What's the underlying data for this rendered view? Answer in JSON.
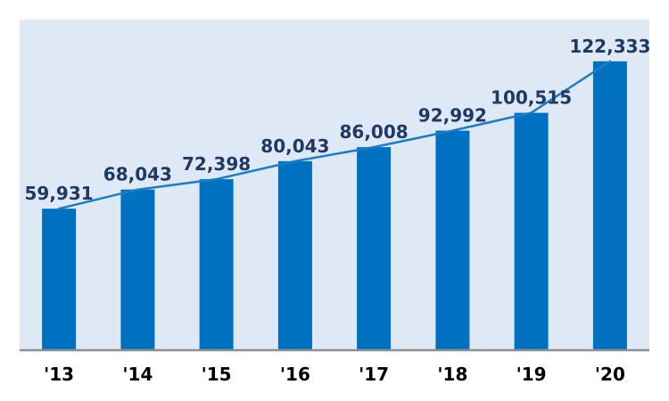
{
  "chart_data": {
    "type": "bar",
    "subtype": "bar-with-line-overlay",
    "title": "",
    "xlabel": "",
    "ylabel": "",
    "categories": [
      "'13",
      "'14",
      "'15",
      "'16",
      "'17",
      "'18",
      "'19",
      "'20"
    ],
    "values": [
      59931,
      68043,
      72398,
      80043,
      86008,
      92992,
      100515,
      122333
    ],
    "data_labels": [
      "59,931",
      "68,043",
      "72,398",
      "80,043",
      "86,008",
      "92,992",
      "100,515",
      "122,333"
    ],
    "ylim": [
      0,
      140000
    ],
    "grid": false,
    "legend": false,
    "colors": {
      "bar": "#0070c0",
      "line": "#1b7cc7",
      "plot_background": "#dee9f5",
      "page_background": "#ffffff",
      "data_label": "#1f3864",
      "axis_line": "#909090",
      "tick_label": "#000000"
    }
  }
}
